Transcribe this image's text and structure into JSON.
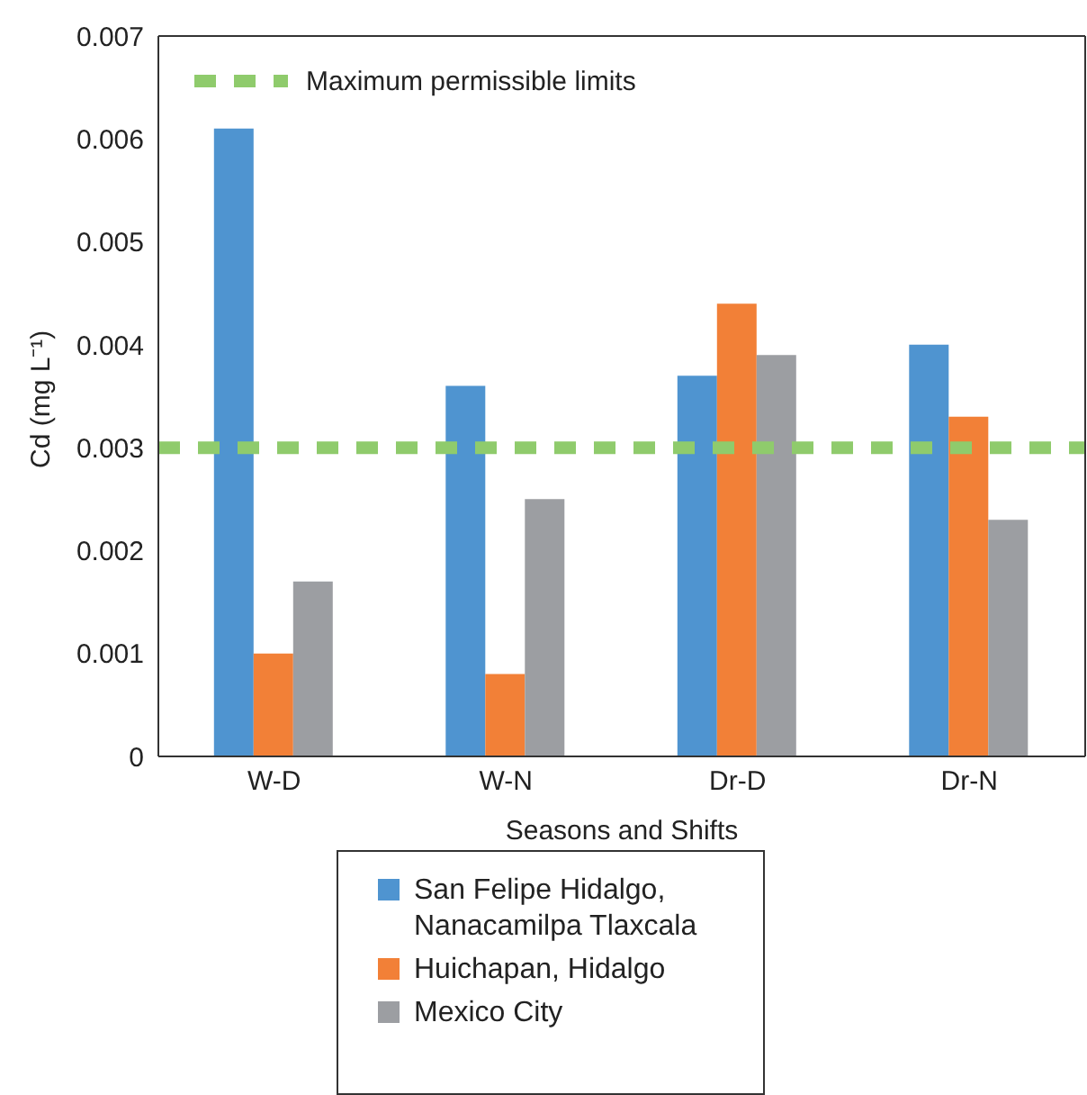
{
  "chart_data": {
    "type": "bar",
    "xlabel": "Seasons and Shifts",
    "ylabel": "Cd (mg L⁻¹)",
    "categories": [
      "W-D",
      "W-N",
      "Dr-D",
      "Dr-N"
    ],
    "series": [
      {
        "name": "San Felipe Hidalgo, Nanacamilpa Tlaxcala",
        "color": "#4f94d0",
        "values": [
          0.0061,
          0.0036,
          0.0037,
          0.004
        ]
      },
      {
        "name": "Huichapan, Hidalgo",
        "color": "#f28037",
        "values": [
          0.001,
          0.0008,
          0.0044,
          0.0033
        ]
      },
      {
        "name": "Mexico City",
        "color": "#9c9ea2",
        "values": [
          0.0017,
          0.0025,
          0.0039,
          0.0023
        ]
      }
    ],
    "ylim": [
      0,
      0.007
    ],
    "yticks": [
      0,
      0.001,
      0.002,
      0.003,
      0.004,
      0.005,
      0.006,
      0.007
    ],
    "ref_lines": [
      {
        "axis": "y",
        "value": 0.003,
        "label": "Maximum permissible limits",
        "color": "#8fcb6c",
        "line_style": "dashed"
      }
    ],
    "legend": "bottom"
  }
}
